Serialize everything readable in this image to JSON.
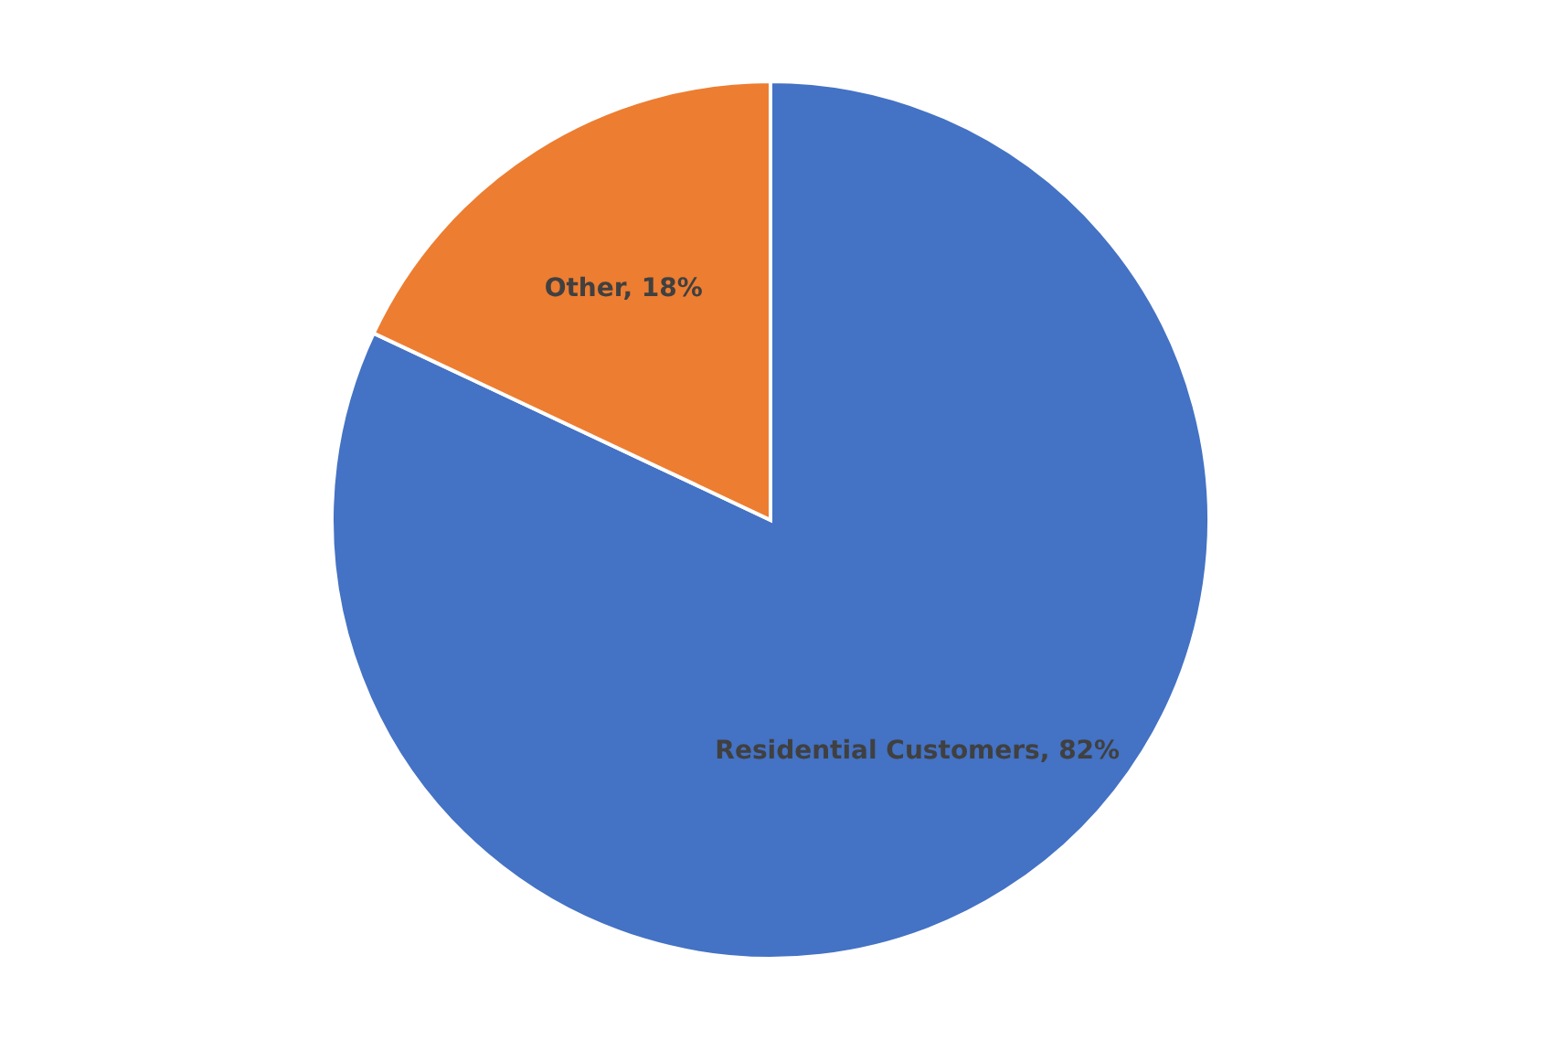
{
  "chart_data": {
    "type": "pie",
    "categories": [
      "Residential Customers",
      "Other"
    ],
    "values": [
      82,
      18
    ],
    "colors": [
      "#4472c4",
      "#ed7d31"
    ],
    "value_labels": [
      "82%",
      "18%"
    ],
    "legend": false
  }
}
